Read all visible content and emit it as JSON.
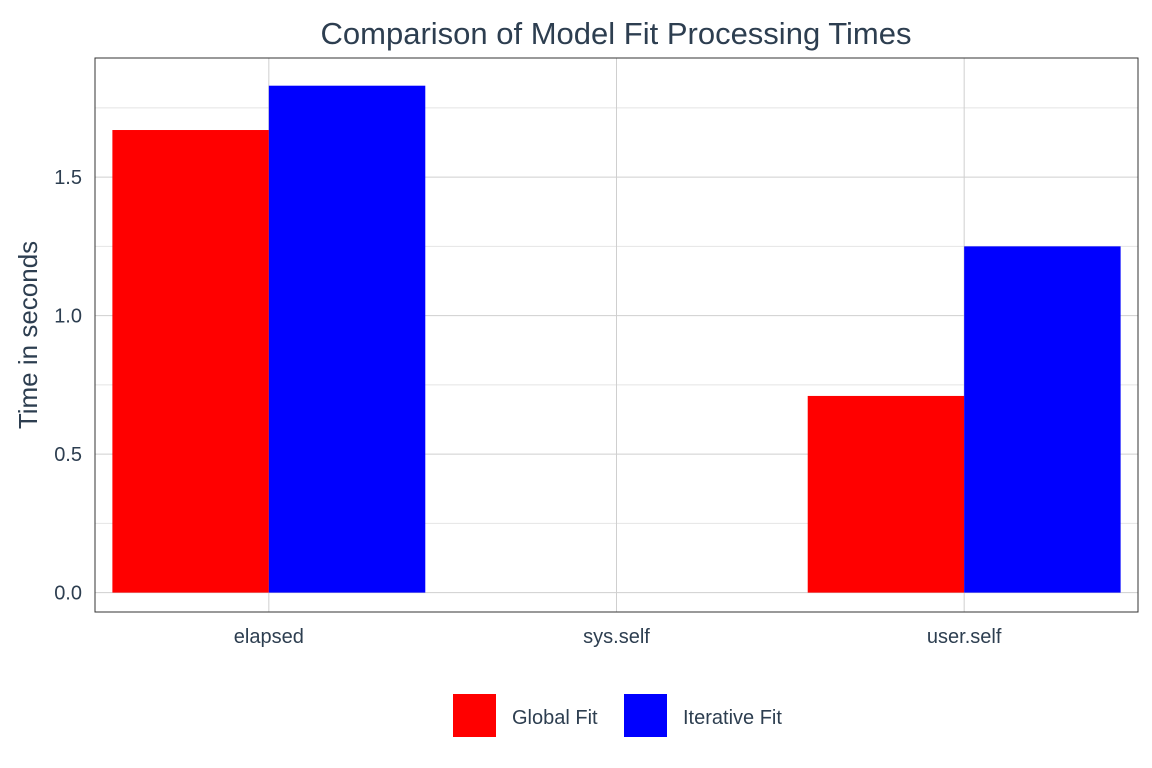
{
  "chart_data": {
    "type": "bar",
    "title": "Comparison of Model Fit Processing Times",
    "xlabel": "",
    "ylabel": "Time in seconds",
    "categories": [
      "elapsed",
      "sys.self",
      "user.self"
    ],
    "series": [
      {
        "name": "Global Fit",
        "color": "#ff0000",
        "values": [
          1.67,
          0.0,
          0.71
        ]
      },
      {
        "name": "Iterative Fit",
        "color": "#0000ff",
        "values": [
          1.83,
          0.0,
          1.25
        ]
      }
    ],
    "ylim": [
      -0.07,
      1.93
    ],
    "yticks": [
      0.0,
      0.5,
      1.0,
      1.5
    ],
    "ytick_labels": [
      "0.0",
      "0.5",
      "1.0",
      "1.5"
    ],
    "grid": true,
    "legend_position": "bottom"
  }
}
